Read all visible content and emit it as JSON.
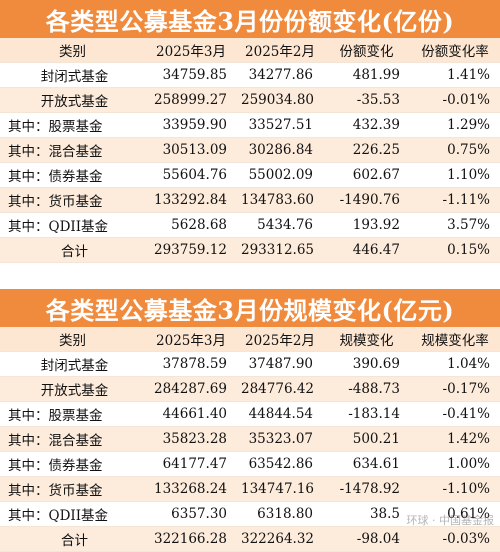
{
  "tables": [
    {
      "title": "各类型公募基金3月份份额变化(亿份)",
      "headers": [
        "类别",
        "2025年3月",
        "2025年2月",
        "份额变化",
        "份额变化率"
      ],
      "rows": [
        [
          "封闭式基金",
          "34759.85",
          "34277.86",
          "481.99",
          "1.41%"
        ],
        [
          "开放式基金",
          "258999.27",
          "259034.80",
          "-35.53",
          "-0.01%"
        ],
        [
          "其中：股票基金",
          "33959.90",
          "33527.51",
          "432.39",
          "1.29%"
        ],
        [
          "其中：混合基金",
          "30513.09",
          "30286.84",
          "226.25",
          "0.75%"
        ],
        [
          "其中：债券基金",
          "55604.76",
          "55002.09",
          "602.67",
          "1.10%"
        ],
        [
          "其中：货币基金",
          "133292.84",
          "134783.60",
          "-1490.76",
          "-1.11%"
        ],
        [
          "其中：QDII基金",
          "5628.68",
          "5434.76",
          "193.92",
          "3.57%"
        ],
        [
          "合计",
          "293759.12",
          "293312.65",
          "446.47",
          "0.15%"
        ]
      ]
    },
    {
      "title": "各类型公募基金3月份规模变化(亿元)",
      "headers": [
        "类别",
        "2025年3月",
        "2025年2月",
        "规模变化",
        "规模变化率"
      ],
      "rows": [
        [
          "封闭式基金",
          "37878.59",
          "37487.90",
          "390.69",
          "1.04%"
        ],
        [
          "开放式基金",
          "284287.69",
          "284776.42",
          "-488.73",
          "-0.17%"
        ],
        [
          "其中：股票基金",
          "44661.40",
          "44844.54",
          "-183.14",
          "-0.41%"
        ],
        [
          "其中：混合基金",
          "35823.28",
          "35323.07",
          "500.21",
          "1.42%"
        ],
        [
          "其中：债券基金",
          "64177.47",
          "63542.86",
          "634.61",
          "1.00%"
        ],
        [
          "其中：货币基金",
          "133268.24",
          "134747.16",
          "-1478.92",
          "-1.10%"
        ],
        [
          "其中：QDII基金",
          "6357.30",
          "6318.80",
          "38.5",
          "0.61%"
        ],
        [
          "合计",
          "322166.28",
          "322264.32",
          "-98.04",
          "-0.03%"
        ]
      ]
    }
  ],
  "watermark": "环球 · 中国基金报",
  "colors": {
    "title_bg": "#f08a3c",
    "header_bg": "#fde6d2",
    "stripe": "#fdebdc"
  }
}
